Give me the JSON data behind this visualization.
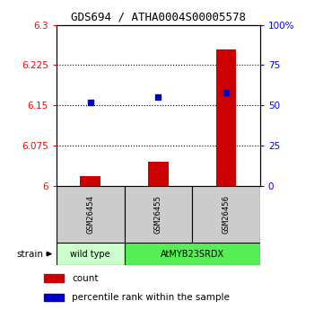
{
  "title": "GDS694 / ATHA0004S00005578",
  "samples": [
    "GSM26454",
    "GSM26455",
    "GSM26456"
  ],
  "count_values": [
    6.018,
    6.045,
    6.255
  ],
  "percentile_values": [
    52,
    55,
    58
  ],
  "ylim_left": [
    6.0,
    6.3
  ],
  "ylim_right": [
    0,
    100
  ],
  "yticks_left": [
    6.0,
    6.075,
    6.15,
    6.225,
    6.3
  ],
  "ytick_labels_left": [
    "6",
    "6.075",
    "6.15",
    "6.225",
    "6.3"
  ],
  "yticks_right": [
    0,
    25,
    50,
    75,
    100
  ],
  "ytick_labels_right": [
    "0",
    "25",
    "50",
    "75",
    "100%"
  ],
  "bar_color": "#cc0000",
  "dot_color": "#0000cc",
  "bar_width": 0.3,
  "sample_box_color": "#cccccc",
  "wild_type_color": "#ccffcc",
  "atMyb_color": "#55ee55",
  "legend_items": [
    {
      "label": "count",
      "color": "#cc0000"
    },
    {
      "label": "percentile rank within the sample",
      "color": "#0000cc"
    }
  ],
  "title_fontsize": 9,
  "tick_fontsize": 7.5,
  "label_fontsize": 7.5
}
